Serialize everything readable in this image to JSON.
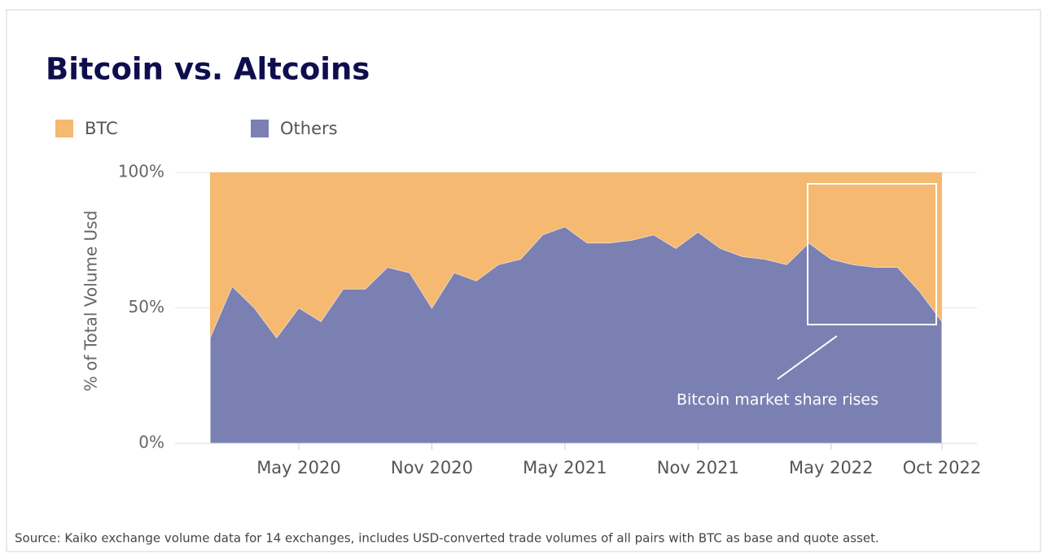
{
  "chart_data": {
    "type": "stacked-area-percent",
    "title": "Bitcoin vs. Altcoins",
    "y_label": "% of Total Volume Usd",
    "annotation": "Bitcoin market share rises",
    "source": "Source: Kaiko exchange volume data for 14 exchanges, includes USD-converted trade volumes of all pairs with BTC as base and quote asset.",
    "x": [
      "Jan 2020",
      "Feb 2020",
      "Mar 2020",
      "Apr 2020",
      "May 2020",
      "Jun 2020",
      "Jul 2020",
      "Aug 2020",
      "Sep 2020",
      "Oct 2020",
      "Nov 2020",
      "Dec 2020",
      "Jan 2021",
      "Feb 2021",
      "Mar 2021",
      "Apr 2021",
      "May 2021",
      "Jun 2021",
      "Jul 2021",
      "Aug 2021",
      "Sep 2021",
      "Oct 2021",
      "Nov 2021",
      "Dec 2021",
      "Jan 2022",
      "Feb 2022",
      "Mar 2022",
      "Apr 2022",
      "May 2022",
      "Jun 2022",
      "Jul 2022",
      "Aug 2022",
      "Sep 2022",
      "Oct 2022"
    ],
    "xticks": [
      "May 2020",
      "Nov 2020",
      "May 2021",
      "Nov 2021",
      "May 2022",
      "Oct 2022"
    ],
    "series": [
      {
        "name": "BTC",
        "color": "#f5b971",
        "values": [
          61,
          42,
          50,
          61,
          50,
          55,
          43,
          43,
          35,
          37,
          50,
          37,
          40,
          34,
          32,
          23,
          20,
          26,
          26,
          25,
          23,
          28,
          22,
          28,
          31,
          32,
          34,
          26,
          32,
          34,
          35,
          35,
          44,
          55
        ]
      },
      {
        "name": "Others",
        "color": "#7b80b3",
        "values": [
          39,
          58,
          50,
          39,
          50,
          45,
          57,
          57,
          65,
          63,
          50,
          63,
          60,
          66,
          68,
          77,
          80,
          74,
          74,
          75,
          77,
          72,
          78,
          72,
          69,
          68,
          66,
          74,
          68,
          66,
          65,
          65,
          56,
          45
        ]
      }
    ],
    "ylim": [
      0,
      100
    ],
    "yticks": [
      {
        "value": 0,
        "label": "0%"
      },
      {
        "value": 50,
        "label": "50%"
      },
      {
        "value": 100,
        "label": "100%"
      }
    ],
    "grid": true,
    "legend": "top-left"
  }
}
